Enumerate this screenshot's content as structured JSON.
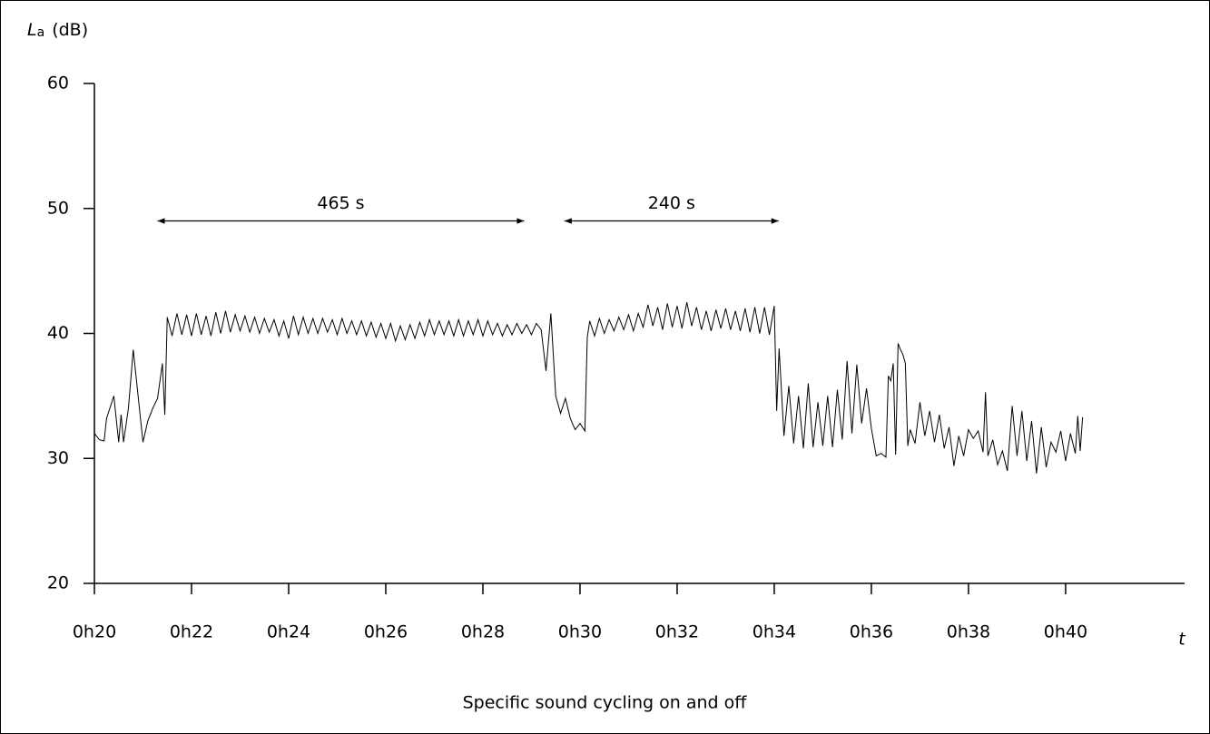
{
  "chart_data": {
    "type": "line",
    "y_label_symbol": "L",
    "y_label_subscript": "a",
    "y_label_unit": "(dB)",
    "x_label": "t",
    "caption": "Specific sound cycling on and off",
    "xlim": [
      20,
      42.45
    ],
    "ylim": [
      20,
      60
    ],
    "xticks": [
      {
        "value": 20,
        "label": "0h20"
      },
      {
        "value": 22,
        "label": "0h22"
      },
      {
        "value": 24,
        "label": "0h24"
      },
      {
        "value": 26,
        "label": "0h26"
      },
      {
        "value": 28,
        "label": "0h28"
      },
      {
        "value": 30,
        "label": "0h30"
      },
      {
        "value": 32,
        "label": "0h32"
      },
      {
        "value": 34,
        "label": "0h34"
      },
      {
        "value": 36,
        "label": "0h36"
      },
      {
        "value": 38,
        "label": "0h38"
      },
      {
        "value": 40,
        "label": "0h40"
      }
    ],
    "yticks": [
      20,
      30,
      40,
      50,
      60
    ],
    "annotations": [
      {
        "text": "465 s",
        "x_start": 21.3,
        "x_end": 28.85,
        "y": 49
      },
      {
        "text": "240 s",
        "x_start": 29.68,
        "x_end": 34.09,
        "y": 49
      }
    ],
    "series": [
      {
        "color": "#000000",
        "x": [
          20.0,
          20.1,
          20.2,
          20.25,
          20.4,
          20.5,
          20.55,
          20.6,
          20.7,
          20.8,
          20.9,
          21.0,
          21.1,
          21.2,
          21.3,
          21.4,
          21.45,
          21.5,
          21.6,
          21.7,
          21.8,
          21.9,
          22.0,
          22.1,
          22.2,
          22.3,
          22.4,
          22.5,
          22.6,
          22.7,
          22.8,
          22.9,
          23.0,
          23.1,
          23.2,
          23.3,
          23.4,
          23.5,
          23.6,
          23.7,
          23.8,
          23.9,
          24.0,
          24.1,
          24.2,
          24.3,
          24.4,
          24.5,
          24.6,
          24.7,
          24.8,
          24.9,
          25.0,
          25.1,
          25.2,
          25.3,
          25.4,
          25.5,
          25.6,
          25.7,
          25.8,
          25.9,
          26.0,
          26.1,
          26.2,
          26.3,
          26.4,
          26.5,
          26.6,
          26.7,
          26.8,
          26.9,
          27.0,
          27.1,
          27.2,
          27.3,
          27.4,
          27.5,
          27.6,
          27.7,
          27.8,
          27.9,
          28.0,
          28.1,
          28.2,
          28.3,
          28.4,
          28.5,
          28.6,
          28.7,
          28.8,
          28.9,
          29.0,
          29.1,
          29.2,
          29.3,
          29.4,
          29.5,
          29.6,
          29.7,
          29.8,
          29.9,
          30.0,
          30.1,
          30.15,
          30.2,
          30.3,
          30.4,
          30.5,
          30.6,
          30.7,
          30.8,
          30.9,
          31.0,
          31.1,
          31.2,
          31.3,
          31.4,
          31.5,
          31.6,
          31.7,
          31.8,
          31.9,
          32.0,
          32.1,
          32.2,
          32.3,
          32.4,
          32.5,
          32.6,
          32.7,
          32.8,
          32.9,
          33.0,
          33.1,
          33.2,
          33.3,
          33.4,
          33.5,
          33.6,
          33.7,
          33.8,
          33.9,
          34.0,
          34.05,
          34.1,
          34.2,
          34.3,
          34.4,
          34.5,
          34.6,
          34.7,
          34.8,
          34.9,
          35.0,
          35.1,
          35.2,
          35.3,
          35.4,
          35.5,
          35.6,
          35.7,
          35.8,
          35.9,
          36.0,
          36.1,
          36.2,
          36.3,
          36.35,
          36.4,
          36.45,
          36.5,
          36.55,
          36.6,
          36.65,
          36.7,
          36.75,
          36.8,
          36.9,
          37.0,
          37.1,
          37.2,
          37.3,
          37.4,
          37.5,
          37.6,
          37.7,
          37.8,
          37.9,
          38.0,
          38.1,
          38.2,
          38.3,
          38.35,
          38.4,
          38.5,
          38.6,
          38.7,
          38.8,
          38.9,
          39.0,
          39.1,
          39.2,
          39.3,
          39.4,
          39.5,
          39.6,
          39.7,
          39.8,
          39.9,
          40.0,
          40.1,
          40.2,
          40.25,
          40.3,
          40.35
        ],
        "values": [
          32,
          31.5,
          31.4,
          33.2,
          35,
          31.3,
          33.5,
          31.3,
          34,
          38.7,
          35,
          31.3,
          33,
          34,
          34.8,
          37.6,
          33.5,
          41.3,
          39.8,
          41.6,
          39.9,
          41.5,
          39.8,
          41.6,
          39.9,
          41.4,
          39.8,
          41.7,
          40,
          41.8,
          40.1,
          41.5,
          40.2,
          41.4,
          40.1,
          41.3,
          40,
          41.2,
          40.1,
          41.1,
          39.8,
          41,
          39.6,
          41.4,
          39.9,
          41.3,
          40,
          41.2,
          40,
          41.2,
          40.1,
          41.1,
          39.9,
          41.2,
          40,
          41,
          39.9,
          41,
          39.8,
          40.9,
          39.7,
          40.8,
          39.6,
          40.8,
          39.4,
          40.6,
          39.5,
          40.7,
          39.6,
          40.9,
          39.8,
          41.1,
          39.9,
          41,
          39.9,
          41,
          39.8,
          41.1,
          39.8,
          41,
          39.9,
          41.1,
          39.8,
          41,
          39.9,
          40.8,
          39.8,
          40.7,
          39.9,
          40.8,
          40,
          40.7,
          39.9,
          40.8,
          40.3,
          37,
          41.6,
          35,
          33.6,
          34.8,
          33.2,
          32.3,
          32.8,
          32.2,
          39.7,
          41,
          39.8,
          41.2,
          40,
          41.1,
          40.2,
          41.3,
          40.3,
          41.5,
          40.2,
          41.6,
          40.5,
          42.3,
          40.6,
          42.1,
          40.3,
          42.4,
          40.5,
          42.2,
          40.4,
          42.5,
          40.6,
          42.1,
          40.3,
          41.8,
          40.2,
          41.9,
          40.4,
          42,
          40.3,
          41.8,
          40.2,
          42,
          40.1,
          42.1,
          40,
          42.1,
          39.9,
          42.2,
          33.8,
          38.8,
          31.8,
          35.8,
          31.2,
          35,
          30.8,
          36,
          30.9,
          34.5,
          31,
          35,
          30.9,
          35.5,
          31.5,
          37.8,
          32,
          37.5,
          32.8,
          35.6,
          32.4,
          30.2,
          30.4,
          30.1,
          36.6,
          36.2,
          37.6,
          30.3,
          39.2,
          38.7,
          38.3,
          37.6,
          31,
          32.3,
          31.2,
          34.5,
          31.8,
          33.8,
          31.3,
          33.5,
          30.8,
          32.5,
          29.4,
          31.8,
          30.2,
          32.3,
          31.6,
          32.2,
          30.5,
          35.3,
          30.2,
          31.5,
          29.5,
          30.6,
          29,
          34.2,
          30.2,
          33.8,
          29.8,
          33,
          28.8,
          32.5,
          29.3,
          31.3,
          30.5,
          32.2,
          29.8,
          32,
          30.4,
          33.4,
          30.6,
          33.3
        ]
      }
    ]
  }
}
